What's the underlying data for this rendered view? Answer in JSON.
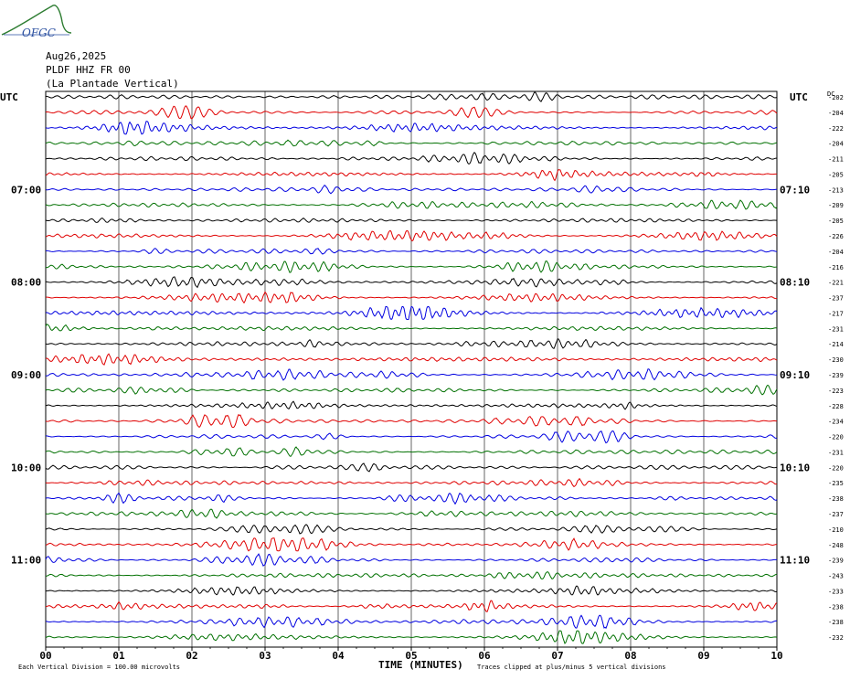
{
  "header": {
    "date": "Aug26,2025",
    "station": "PLDF HHZ FR 00",
    "location": "(La Plantade Vertical)",
    "logo_text": "OFGC"
  },
  "labels": {
    "left_utc": "UTC",
    "right_utc": "UTC",
    "dc": "DC",
    "x_title": "TIME (MINUTES)",
    "footer_left": "Each Vertical Division =  100.00 microvolts",
    "footer_right": "Traces clipped at plus/minus 5 vertical divisions"
  },
  "colors": {
    "trace_cycle": [
      "#000000",
      "#e00000",
      "#0000e0",
      "#007000"
    ],
    "grid": "#000000"
  },
  "chart_data": {
    "type": "line",
    "title": "PLDF HHZ FR 00 (La Plantade Vertical)",
    "xlabel": "TIME (MINUTES)",
    "ylabel": "",
    "xlim": [
      0,
      10
    ],
    "x_ticks": [
      "00",
      "01",
      "02",
      "03",
      "04",
      "05",
      "06",
      "07",
      "08",
      "09",
      "10"
    ],
    "left_time_labels": [
      {
        "row": 6,
        "label": "07:00"
      },
      {
        "row": 12,
        "label": "08:00"
      },
      {
        "row": 18,
        "label": "09:00"
      },
      {
        "row": 24,
        "label": "10:00"
      },
      {
        "row": 30,
        "label": "11:00"
      }
    ],
    "right_time_labels": [
      {
        "row": 6,
        "label": "07:10"
      },
      {
        "row": 12,
        "label": "08:10"
      },
      {
        "row": 18,
        "label": "09:10"
      },
      {
        "row": 24,
        "label": "10:10"
      },
      {
        "row": 30,
        "label": "11:10"
      }
    ],
    "dc_offsets": [
      -202,
      -204,
      -222,
      -204,
      -211,
      -205,
      -213,
      -209,
      -205,
      -226,
      -204,
      -216,
      -221,
      -237,
      -217,
      -231,
      -214,
      -230,
      -239,
      -223,
      -228,
      -234,
      -220,
      -231,
      -220,
      -235,
      -238,
      -237,
      -210,
      -248,
      -239,
      -243,
      -233,
      -238,
      -238,
      -232
    ],
    "traces_count": 36,
    "minutes_per_trace": 10,
    "vertical_division_microvolts": 100.0,
    "clip_divisions": 5,
    "grid": true
  }
}
